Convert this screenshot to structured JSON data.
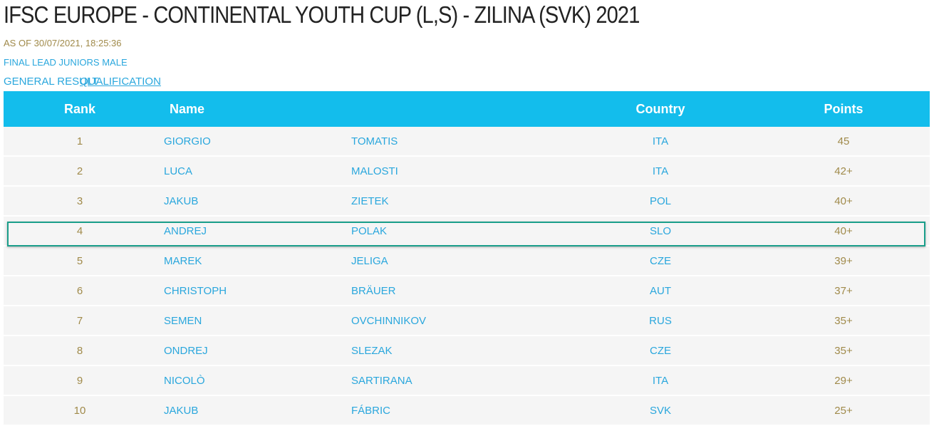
{
  "header": {
    "title": "IFSC EUROPE - CONTINENTAL YOUTH CUP (L,S) - ZILINA (SVK) 2021",
    "timestamp": "AS OF 30/07/2021, 18:25:36",
    "event": "FINAL LEAD JUNIORS MALE"
  },
  "tabs": [
    "GENERAL RESULT",
    "QUALIFICATION"
  ],
  "table": {
    "columns": [
      "Rank",
      "Name",
      "Country",
      "Points"
    ],
    "rows": [
      [
        1,
        "GIORGIO",
        "TOMATIS",
        "ITA",
        "45"
      ],
      [
        2,
        "LUCA",
        "MALOSTI",
        "ITA",
        "42+"
      ],
      [
        3,
        "JAKUB",
        "ZIETEK",
        "POL",
        "40+"
      ],
      [
        4,
        "ANDREJ",
        "POLAK",
        "SLO",
        "40+"
      ],
      [
        5,
        "MAREK",
        "JELIGA",
        "CZE",
        "39+"
      ],
      [
        6,
        "CHRISTOPH",
        "BRÄUER",
        "AUT",
        "37+"
      ],
      [
        7,
        "SEMEN",
        "OVCHINNIKOV",
        "RUS",
        "35+"
      ],
      [
        8,
        "ONDREJ",
        "SLEZAK",
        "CZE",
        "35+"
      ],
      [
        9,
        "NICOLÒ",
        "SARTIRANA",
        "ITA",
        "29+"
      ],
      [
        10,
        "JAKUB",
        "FÁBRIC",
        "SVK",
        "25+"
      ]
    ]
  }
}
